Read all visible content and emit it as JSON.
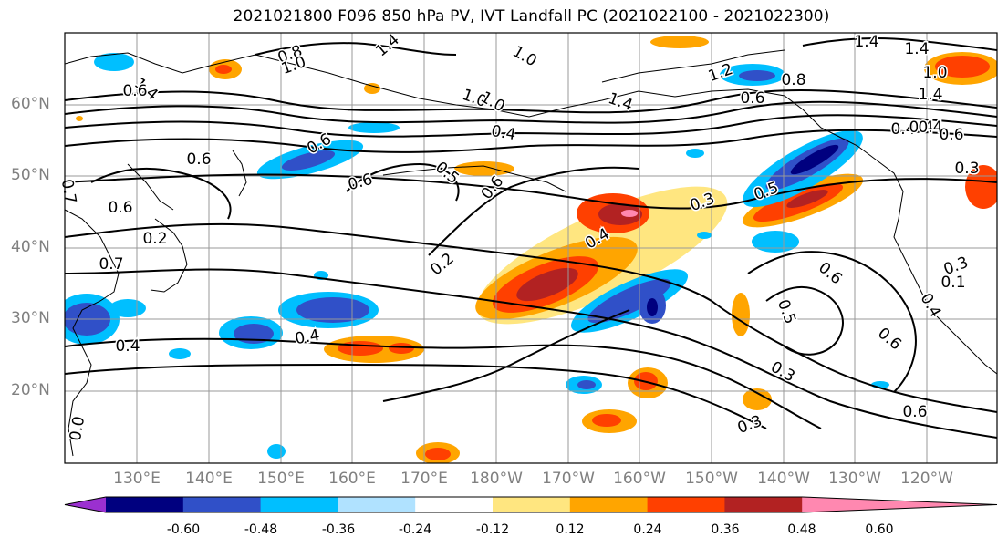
{
  "title": "2021021800 F096 850 hPa PV, IVT Landfall PC (2021022100 - 2021022300)",
  "lat_labels": [
    "60°N",
    "50°N",
    "40°N",
    "30°N",
    "20°N"
  ],
  "lon_labels": [
    "130°E",
    "140°E",
    "150°E",
    "160°E",
    "170°E",
    "180°W",
    "170°W",
    "160°W",
    "150°W",
    "140°W",
    "130°W",
    "120°W"
  ],
  "colorbar": {
    "ticks": [
      "-0.60",
      "-0.48",
      "-0.36",
      "-0.24",
      "-0.12",
      "0.12",
      "0.24",
      "0.36",
      "0.48",
      "0.60"
    ],
    "colors": [
      "#9b30d0",
      "#00007f",
      "#3050c8",
      "#00bfff",
      "#b0e2ff",
      "#ffffff",
      "#ffe680",
      "#ffa500",
      "#ff4000",
      "#b22222",
      "#ff88b0"
    ]
  },
  "contour_labels": [
    "0.8",
    "1.0",
    "1.4",
    "1.0",
    "1.0",
    "1.4",
    "1.2",
    "0.8",
    "1.4",
    "1.4",
    "1.0",
    "0.6",
    "1.4",
    "0.4",
    "0.4",
    "0.6",
    "0.6",
    "0.5",
    "0.6",
    "0.6",
    "0.3",
    "0.4",
    "0.5",
    "0.2",
    "0.4",
    "0.6",
    "0.5",
    "0.3",
    "0.3",
    "0.6",
    "0.4",
    "0.6",
    "0.3",
    "0.2",
    "0.6",
    "0.7",
    "0.6",
    "0.7",
    "0.3",
    "0.4",
    "1.0",
    "0.0",
    "0.4",
    "0.1",
    "0.4",
    "0.6",
    "1.4",
    "0.6"
  ]
}
